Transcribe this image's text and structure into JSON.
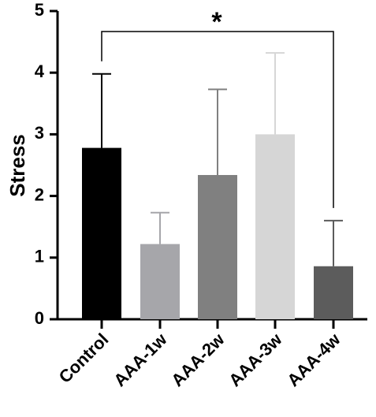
{
  "chart_data": {
    "type": "bar",
    "categories": [
      "Control",
      "AAA-1w",
      "AAA-2w",
      "AAA-3w",
      "AAA-4w"
    ],
    "values": [
      2.78,
      1.22,
      2.34,
      3.0,
      0.86
    ],
    "error_upper": [
      3.98,
      1.73,
      3.73,
      4.32,
      1.6
    ],
    "bar_colors": [
      "#000000",
      "#a6a6aa",
      "#808080",
      "#d6d6d6",
      "#5c5c5c"
    ],
    "ylabel": "Stress",
    "xlabel": "",
    "ylim": [
      0,
      5
    ],
    "yticks": [
      0,
      1,
      2,
      3,
      4,
      5
    ],
    "significance": {
      "from": "Control",
      "to": "AAA-4w",
      "label": "*"
    }
  }
}
